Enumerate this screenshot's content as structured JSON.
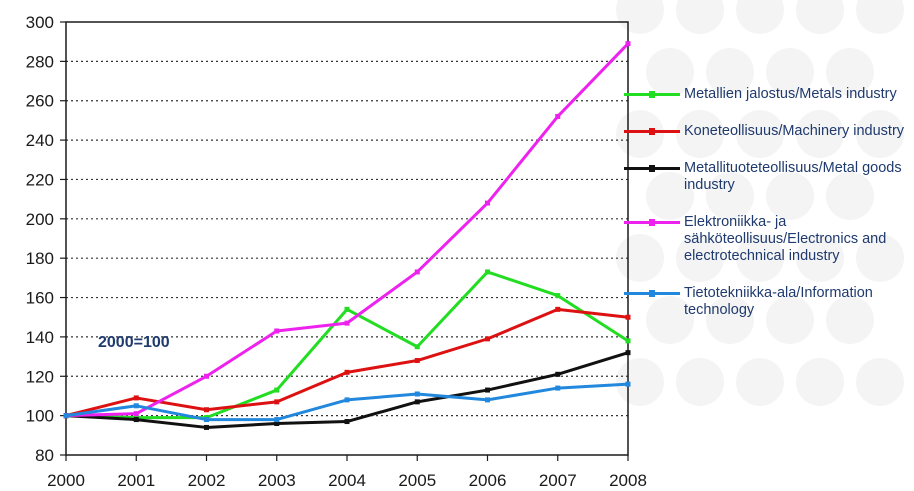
{
  "chart_data": {
    "type": "line",
    "x": [
      "2000",
      "2001",
      "2002",
      "2003",
      "2004",
      "2005",
      "2006",
      "2007",
      "2008"
    ],
    "ylim": [
      80,
      300
    ],
    "yticks": [
      80,
      100,
      120,
      140,
      160,
      180,
      200,
      220,
      240,
      260,
      280,
      300
    ],
    "grid": "horizontal dotted",
    "legend_position": "right",
    "annotation": "2000=100",
    "series": [
      {
        "name": "Metallien jalostus/Metals industry",
        "color": "#22dd22",
        "values": [
          100,
          99,
          99,
          113,
          154,
          135,
          173,
          161,
          138
        ]
      },
      {
        "name": "Koneteollisuus/Machinery industry",
        "color": "#dd1111",
        "values": [
          100,
          109,
          103,
          107,
          122,
          128,
          139,
          154,
          150
        ]
      },
      {
        "name": "Metallituoteteollisuus/Metal goods industry",
        "color": "#111111",
        "values": [
          100,
          98,
          94,
          96,
          97,
          107,
          113,
          121,
          132
        ]
      },
      {
        "name": "Elektroniikka- ja sähköteollisuus/Electronics and electrotechnical industry",
        "color": "#ee22ee",
        "values": [
          100,
          101,
          120,
          143,
          147,
          173,
          208,
          252,
          289
        ]
      },
      {
        "name": "Tietotekniikka-ala/Information technology",
        "color": "#2288dd",
        "values": [
          100,
          105,
          98,
          98,
          108,
          111,
          108,
          114,
          116
        ]
      }
    ]
  }
}
